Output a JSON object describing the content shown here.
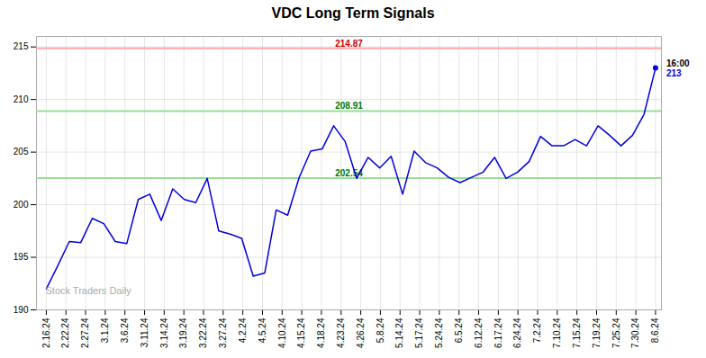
{
  "chart_data": {
    "type": "line",
    "title": "VDC Long Term Signals",
    "x": [
      0,
      0.5849,
      1.1698,
      1.7547,
      2.3396,
      2.9245,
      3.5094,
      4.0943,
      4.6792,
      5.2642,
      5.8491,
      6.434,
      7.0189,
      7.6038,
      8.1887,
      8.7736,
      9.3585,
      9.9434,
      10.5283,
      11.1132,
      11.6981,
      12.283,
      12.8679,
      13.4528,
      14.0377,
      14.6226,
      15.2075,
      15.7925,
      16.3774,
      16.9623,
      17.5472,
      18.1321,
      18.717,
      19.3019,
      19.8868,
      20.4717,
      21.0566,
      21.6415,
      22.2264,
      22.8113,
      23.3962,
      23.9811,
      24.566,
      25.1509,
      25.7358,
      26.3208,
      26.9057,
      27.4906,
      28.0755,
      28.6604,
      29.2453,
      29.8302,
      30.4151,
      31
    ],
    "values": [
      192.0,
      194.2,
      196.5,
      196.4,
      198.7,
      198.2,
      196.5,
      196.3,
      200.5,
      201.0,
      198.5,
      201.5,
      200.5,
      200.2,
      202.5,
      197.5,
      197.2,
      196.8,
      193.2,
      193.5,
      199.5,
      199.0,
      202.6,
      205.1,
      205.3,
      207.5,
      206.0,
      202.5,
      204.5,
      203.5,
      204.6,
      201.0,
      205.1,
      204.0,
      203.5,
      202.6,
      202.1,
      202.6,
      203.1,
      204.5,
      202.5,
      203.1,
      204.1,
      206.5,
      205.6,
      205.6,
      206.2,
      205.6,
      207.5,
      206.6,
      205.6,
      206.6,
      208.6,
      213.0
    ],
    "color": "#0000dd",
    "xlim": [
      -0.5,
      31.3
    ],
    "xticks": [
      {
        "value": 0,
        "label": "2.16.24"
      },
      {
        "value": 1,
        "label": "2.22.24"
      },
      {
        "value": 2,
        "label": "2.27.24"
      },
      {
        "value": 3,
        "label": "3.1.24"
      },
      {
        "value": 4,
        "label": "3.6.24"
      },
      {
        "value": 5,
        "label": "3.11.24"
      },
      {
        "value": 6,
        "label": "3.14.24"
      },
      {
        "value": 7,
        "label": "3.19.24"
      },
      {
        "value": 8,
        "label": "3.22.24"
      },
      {
        "value": 9,
        "label": "3.27.24"
      },
      {
        "value": 10,
        "label": "4.2.24"
      },
      {
        "value": 11,
        "label": "4.5.24"
      },
      {
        "value": 12,
        "label": "4.10.24"
      },
      {
        "value": 13,
        "label": "4.15.24"
      },
      {
        "value": 14,
        "label": "4.18.24"
      },
      {
        "value": 15,
        "label": "4.23.24"
      },
      {
        "value": 16,
        "label": "4.26.24"
      },
      {
        "value": 17,
        "label": "5.8.24"
      },
      {
        "value": 18,
        "label": "5.14.24"
      },
      {
        "value": 19,
        "label": "5.17.24"
      },
      {
        "value": 20,
        "label": "5.24.24"
      },
      {
        "value": 21,
        "label": "6.5.24"
      },
      {
        "value": 22,
        "label": "6.12.24"
      },
      {
        "value": 23,
        "label": "6.17.24"
      },
      {
        "value": 24,
        "label": "6.24.24"
      },
      {
        "value": 25,
        "label": "7.2.24"
      },
      {
        "value": 26,
        "label": "7.10.24"
      },
      {
        "value": 27,
        "label": "7.15.24"
      },
      {
        "value": 28,
        "label": "7.19.24"
      },
      {
        "value": 29,
        "label": "7.25.24"
      },
      {
        "value": 30,
        "label": "7.30.24"
      },
      {
        "value": 31,
        "label": "8.6.24"
      }
    ],
    "ylim": [
      190,
      216
    ],
    "yticks": [
      190,
      195,
      200,
      205,
      210,
      215
    ],
    "grid": true,
    "hlines": [
      {
        "value": 214.87,
        "label": "214.87",
        "color": "#ffaaaa",
        "label_color": "#cc0000"
      },
      {
        "value": 208.91,
        "label": "208.91",
        "color": "#99dd99",
        "label_color": "#007700"
      },
      {
        "value": 202.54,
        "label": "202.54",
        "color": "#99dd99",
        "label_color": "#007700"
      }
    ],
    "last_point": {
      "x": 31,
      "value": 213,
      "time_label": "16:00",
      "value_label": "213"
    },
    "watermark": {
      "text": "Stock Traders Daily",
      "color": "#aaaaaa"
    }
  }
}
